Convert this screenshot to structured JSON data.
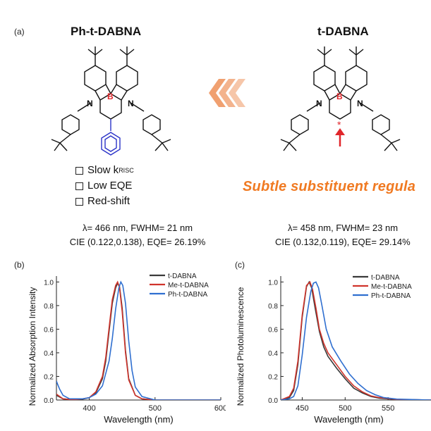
{
  "panel_a": {
    "label": "(a)",
    "left_title": "Ph-t-DABNA",
    "right_title": "t-DABNA",
    "checklist": [
      {
        "text": "Slow k",
        "sub": "RISC"
      },
      {
        "text": "Low EQE",
        "sub": ""
      },
      {
        "text": "Red-shift",
        "sub": ""
      }
    ],
    "banner": "Subtle substituent regula",
    "left_info": [
      "λ= 466 nm, FWHM= 21 nm",
      "CIE (0.122,0.138), EQE= 26.19%"
    ],
    "right_info": [
      "λ= 458 nm, FWHM= 23 nm",
      "CIE (0.132,0.119), EQE= 29.14%"
    ],
    "atom_labels": {
      "boron": "B",
      "nitrogen": "N"
    },
    "colors": {
      "boron": "#e0262b",
      "phenyl": "#2a32c8",
      "arrow": "#f0a070",
      "red_arrow": "#e0262b"
    }
  },
  "chart_data": [
    {
      "panel": "(b)",
      "type": "line",
      "xlabel": "Wavelength (nm)",
      "ylabel": "Normalized Absorption Intensity",
      "xlim": [
        350,
        600
      ],
      "ylim": [
        0,
        1.05
      ],
      "xticks": [
        400,
        500,
        600
      ],
      "yticks": [
        0.0,
        0.2,
        0.4,
        0.6,
        0.8,
        1.0
      ],
      "legend_position": "top-right",
      "series": [
        {
          "name": "t-DABNA",
          "color": "#3a3a3a",
          "x": [
            350,
            360,
            370,
            380,
            390,
            400,
            410,
            420,
            425,
            430,
            435,
            440,
            443,
            446,
            450,
            455,
            460,
            470,
            480,
            500,
            550,
            600
          ],
          "y": [
            0.04,
            0.01,
            0.005,
            0.005,
            0.008,
            0.02,
            0.06,
            0.18,
            0.33,
            0.58,
            0.82,
            0.95,
            0.99,
            0.96,
            0.78,
            0.42,
            0.18,
            0.04,
            0.01,
            0.0,
            0.0,
            0.0
          ]
        },
        {
          "name": "Me-t-DABNA",
          "color": "#d0342c",
          "x": [
            350,
            360,
            370,
            380,
            390,
            400,
            410,
            420,
            425,
            430,
            435,
            440,
            443,
            446,
            450,
            455,
            460,
            470,
            480,
            500,
            550,
            600
          ],
          "y": [
            0.05,
            0.01,
            0.005,
            0.005,
            0.01,
            0.02,
            0.07,
            0.2,
            0.36,
            0.61,
            0.85,
            0.97,
            1.0,
            0.95,
            0.75,
            0.4,
            0.17,
            0.04,
            0.01,
            0.0,
            0.0,
            0.0
          ]
        },
        {
          "name": "Ph-t-DABNA",
          "color": "#2f6fd0",
          "x": [
            350,
            352,
            355,
            360,
            370,
            380,
            390,
            400,
            410,
            420,
            430,
            435,
            440,
            445,
            448,
            451,
            455,
            460,
            465,
            470,
            480,
            500,
            550,
            600
          ],
          "y": [
            0.16,
            0.13,
            0.09,
            0.04,
            0.01,
            0.01,
            0.01,
            0.02,
            0.05,
            0.12,
            0.33,
            0.52,
            0.77,
            0.95,
            1.0,
            0.97,
            0.82,
            0.5,
            0.25,
            0.11,
            0.03,
            0.0,
            0.0,
            0.0
          ]
        }
      ]
    },
    {
      "panel": "(c)",
      "type": "line",
      "xlabel": "Wavelength (nm)",
      "ylabel": "Normalized Photoluminescence",
      "xlim": [
        425,
        600
      ],
      "ylim": [
        0,
        1.05
      ],
      "xticks": [
        450,
        500,
        550
      ],
      "yticks": [
        0.0,
        0.2,
        0.4,
        0.6,
        0.8,
        1.0
      ],
      "legend_position": "top-right",
      "series": [
        {
          "name": "t-DABNA",
          "color": "#3a3a3a",
          "x": [
            425,
            435,
            440,
            445,
            450,
            455,
            458,
            461,
            465,
            470,
            475,
            480,
            490,
            500,
            510,
            520,
            530,
            540,
            560,
            600
          ],
          "y": [
            0.0,
            0.02,
            0.08,
            0.3,
            0.7,
            0.96,
            1.0,
            0.95,
            0.78,
            0.58,
            0.45,
            0.37,
            0.27,
            0.18,
            0.1,
            0.06,
            0.03,
            0.015,
            0.005,
            0.0
          ]
        },
        {
          "name": "Me-t-DABNA",
          "color": "#d0342c",
          "x": [
            425,
            435,
            440,
            445,
            450,
            455,
            459,
            462,
            466,
            470,
            475,
            480,
            490,
            500,
            510,
            520,
            530,
            540,
            560,
            600
          ],
          "y": [
            0.0,
            0.03,
            0.1,
            0.33,
            0.72,
            0.97,
            1.0,
            0.94,
            0.78,
            0.6,
            0.48,
            0.4,
            0.3,
            0.2,
            0.12,
            0.07,
            0.035,
            0.02,
            0.005,
            0.0
          ]
        },
        {
          "name": "Ph-t-DABNA",
          "color": "#2f6fd0",
          "x": [
            425,
            435,
            440,
            445,
            450,
            455,
            460,
            463,
            466,
            469,
            473,
            478,
            485,
            495,
            505,
            515,
            525,
            535,
            545,
            560,
            600
          ],
          "y": [
            0.0,
            0.01,
            0.03,
            0.12,
            0.38,
            0.7,
            0.92,
            0.99,
            1.0,
            0.95,
            0.8,
            0.6,
            0.45,
            0.33,
            0.22,
            0.14,
            0.08,
            0.045,
            0.02,
            0.008,
            0.0
          ]
        }
      ]
    }
  ]
}
